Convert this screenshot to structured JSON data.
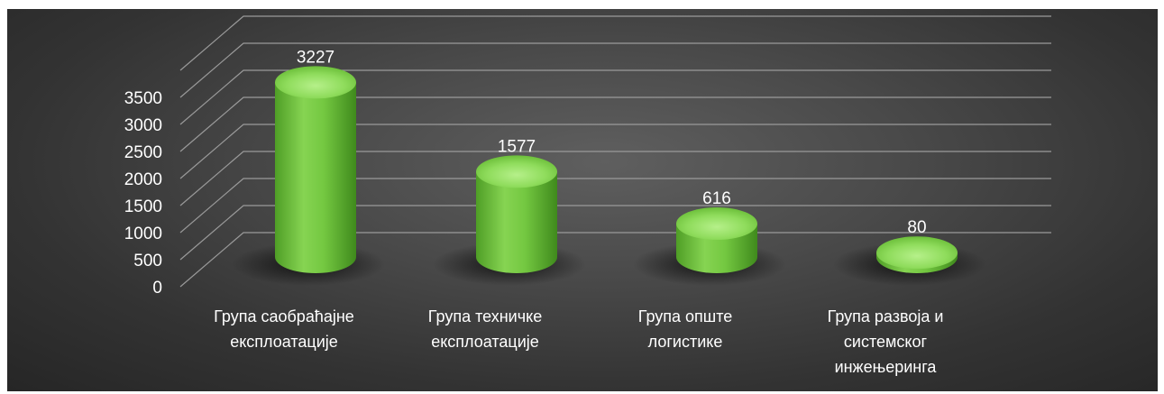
{
  "chart_data": {
    "type": "bar",
    "style": "3d-cylinder",
    "categories": [
      [
        "Група саобраћајне",
        "експлоатације"
      ],
      [
        "Група техничке",
        "експлоатације"
      ],
      [
        "Група опште",
        "логистике"
      ],
      [
        "Група развоја и",
        "системског",
        "инжењеринга"
      ]
    ],
    "values": [
      3227,
      1577,
      616,
      80
    ],
    "data_labels": [
      "3227",
      "1577",
      "616",
      "80"
    ],
    "y_ticks": [
      "0",
      "500",
      "1000",
      "1500",
      "2000",
      "2500",
      "3000",
      "3500"
    ],
    "ylim": [
      0,
      3500
    ],
    "grid": true,
    "legend": "none",
    "colors": {
      "bar_light": "#9be36a",
      "bar_mid": "#6cc23a",
      "bar_dark": "#3f8a1c",
      "background": "#3a3a3a",
      "gridline": "#9a9a9a",
      "text": "#ffffff"
    }
  }
}
